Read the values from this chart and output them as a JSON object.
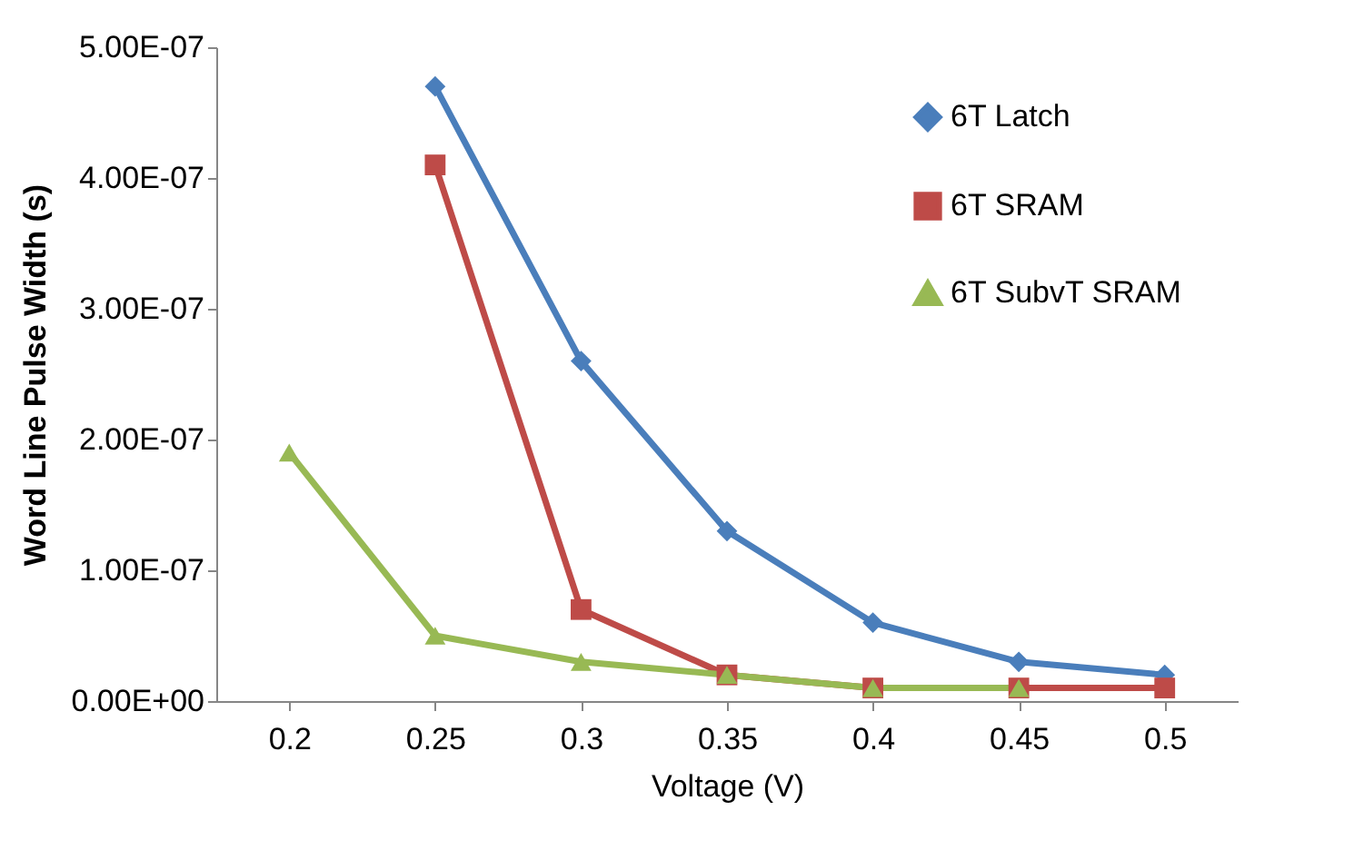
{
  "chart_data": {
    "type": "line",
    "xlabel": "Voltage (V)",
    "ylabel": "Word Line Pulse Width (s)",
    "categories": [
      "0.2",
      "0.25",
      "0.3",
      "0.35",
      "0.4",
      "0.45",
      "0.5"
    ],
    "series": [
      {
        "name": "6T Latch",
        "color": "#4a7ebb",
        "marker": "diamond",
        "values": [
          null,
          4.7e-07,
          2.6e-07,
          1.3e-07,
          6e-08,
          3e-08,
          2e-08
        ]
      },
      {
        "name": "6T SRAM",
        "color": "#be4b48",
        "marker": "square",
        "values": [
          null,
          4.1e-07,
          7e-08,
          2e-08,
          1e-08,
          1e-08,
          1e-08
        ]
      },
      {
        "name": "6T SubvT SRAM",
        "color": "#98b954",
        "marker": "triangle",
        "values": [
          1.9e-07,
          5e-08,
          3e-08,
          2e-08,
          1e-08,
          1e-08,
          null
        ]
      }
    ],
    "ylim": [
      0,
      5e-07
    ],
    "yticks": [
      {
        "value": 0,
        "label": "0.00E+00"
      },
      {
        "value": 1e-07,
        "label": "1.00E-07"
      },
      {
        "value": 2e-07,
        "label": "2.00E-07"
      },
      {
        "value": 3e-07,
        "label": "3.00E-07"
      },
      {
        "value": 4e-07,
        "label": "4.00E-07"
      },
      {
        "value": 5e-07,
        "label": "5.00E-07"
      }
    ],
    "grid": false,
    "legend": "top right",
    "line_style": "solid"
  }
}
